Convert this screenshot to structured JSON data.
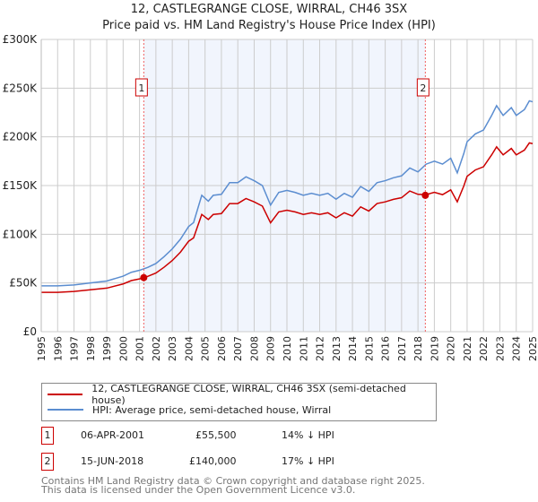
{
  "chart_data": {
    "type": "line",
    "title": "12, CASTLEGRANGE CLOSE, WIRRAL, CH46 3SX",
    "subtitle": "Price paid vs. HM Land Registry's House Price Index (HPI)",
    "xlim": [
      1995,
      2025
    ],
    "ylim": [
      0,
      300000
    ],
    "y_ticks": [
      "£0",
      "£50K",
      "£100K",
      "£150K",
      "£200K",
      "£250K",
      "£300K"
    ],
    "x_ticks": [
      "1995",
      "1996",
      "1997",
      "1998",
      "1999",
      "2000",
      "2001",
      "2002",
      "2003",
      "2004",
      "2005",
      "2006",
      "2007",
      "2008",
      "2009",
      "2010",
      "2011",
      "2012",
      "2013",
      "2014",
      "2015",
      "2016",
      "2017",
      "2018",
      "2019",
      "2020",
      "2021",
      "2022",
      "2023",
      "2024",
      "2025"
    ],
    "grid": true,
    "series": [
      {
        "name": "HPI: Average price, semi-detached house, Wirral",
        "color": "#5b8dd0",
        "x": [
          1995,
          1996,
          1997,
          1998,
          1999,
          2000,
          2000.5,
          2001,
          2001.5,
          2002,
          2002.5,
          2003,
          2003.5,
          2004,
          2004.3,
          2004.8,
          2005.2,
          2005.5,
          2006,
          2006.5,
          2007,
          2007.5,
          2008,
          2008.5,
          2009,
          2009.5,
          2010,
          2010.5,
          2011,
          2011.5,
          2012,
          2012.5,
          2013,
          2013.5,
          2014,
          2014.5,
          2015,
          2015.5,
          2016,
          2016.5,
          2017,
          2017.5,
          2018,
          2018.5,
          2019,
          2019.5,
          2020,
          2020.4,
          2020.8,
          2021,
          2021.5,
          2022,
          2022.5,
          2022.8,
          2023.2,
          2023.7,
          2024,
          2024.5,
          2024.8,
          2025
        ],
        "y": [
          47000,
          47000,
          48000,
          50000,
          52000,
          57000,
          61000,
          63000,
          66000,
          70000,
          77000,
          85000,
          95000,
          108000,
          112000,
          140000,
          134000,
          140000,
          141000,
          153000,
          153000,
          159000,
          155000,
          150000,
          130000,
          143000,
          145000,
          143000,
          140000,
          142000,
          140000,
          142000,
          136000,
          142000,
          138000,
          149000,
          144000,
          153000,
          155000,
          158000,
          160000,
          168000,
          164000,
          172000,
          175000,
          172000,
          178000,
          163000,
          183000,
          195000,
          203000,
          207000,
          222000,
          232000,
          222000,
          230000,
          222000,
          228000,
          237000,
          236000
        ]
      },
      {
        "name": "12, CASTLEGRANGE CLOSE, WIRRAL, CH46 3SX (semi-detached house)",
        "color": "#cc0000",
        "derived_from_hpi": true
      }
    ],
    "sales": [
      {
        "label": "1",
        "x": 2001.26,
        "y": 55500,
        "date": "06-APR-2001",
        "price": "£55,500",
        "hpi": "14% ↓ HPI"
      },
      {
        "label": "2",
        "x": 2018.45,
        "y": 140000,
        "date": "15-JUN-2018",
        "price": "£140,000",
        "hpi": "17% ↓ HPI"
      }
    ]
  },
  "legend": {
    "red": "12, CASTLEGRANGE CLOSE, WIRRAL, CH46 3SX (semi-detached house)",
    "blue": "HPI: Average price, semi-detached house, Wirral"
  },
  "footer": {
    "line1": "Contains HM Land Registry data © Crown copyright and database right 2025.",
    "line2": "This data is licensed under the Open Government Licence v3.0."
  }
}
